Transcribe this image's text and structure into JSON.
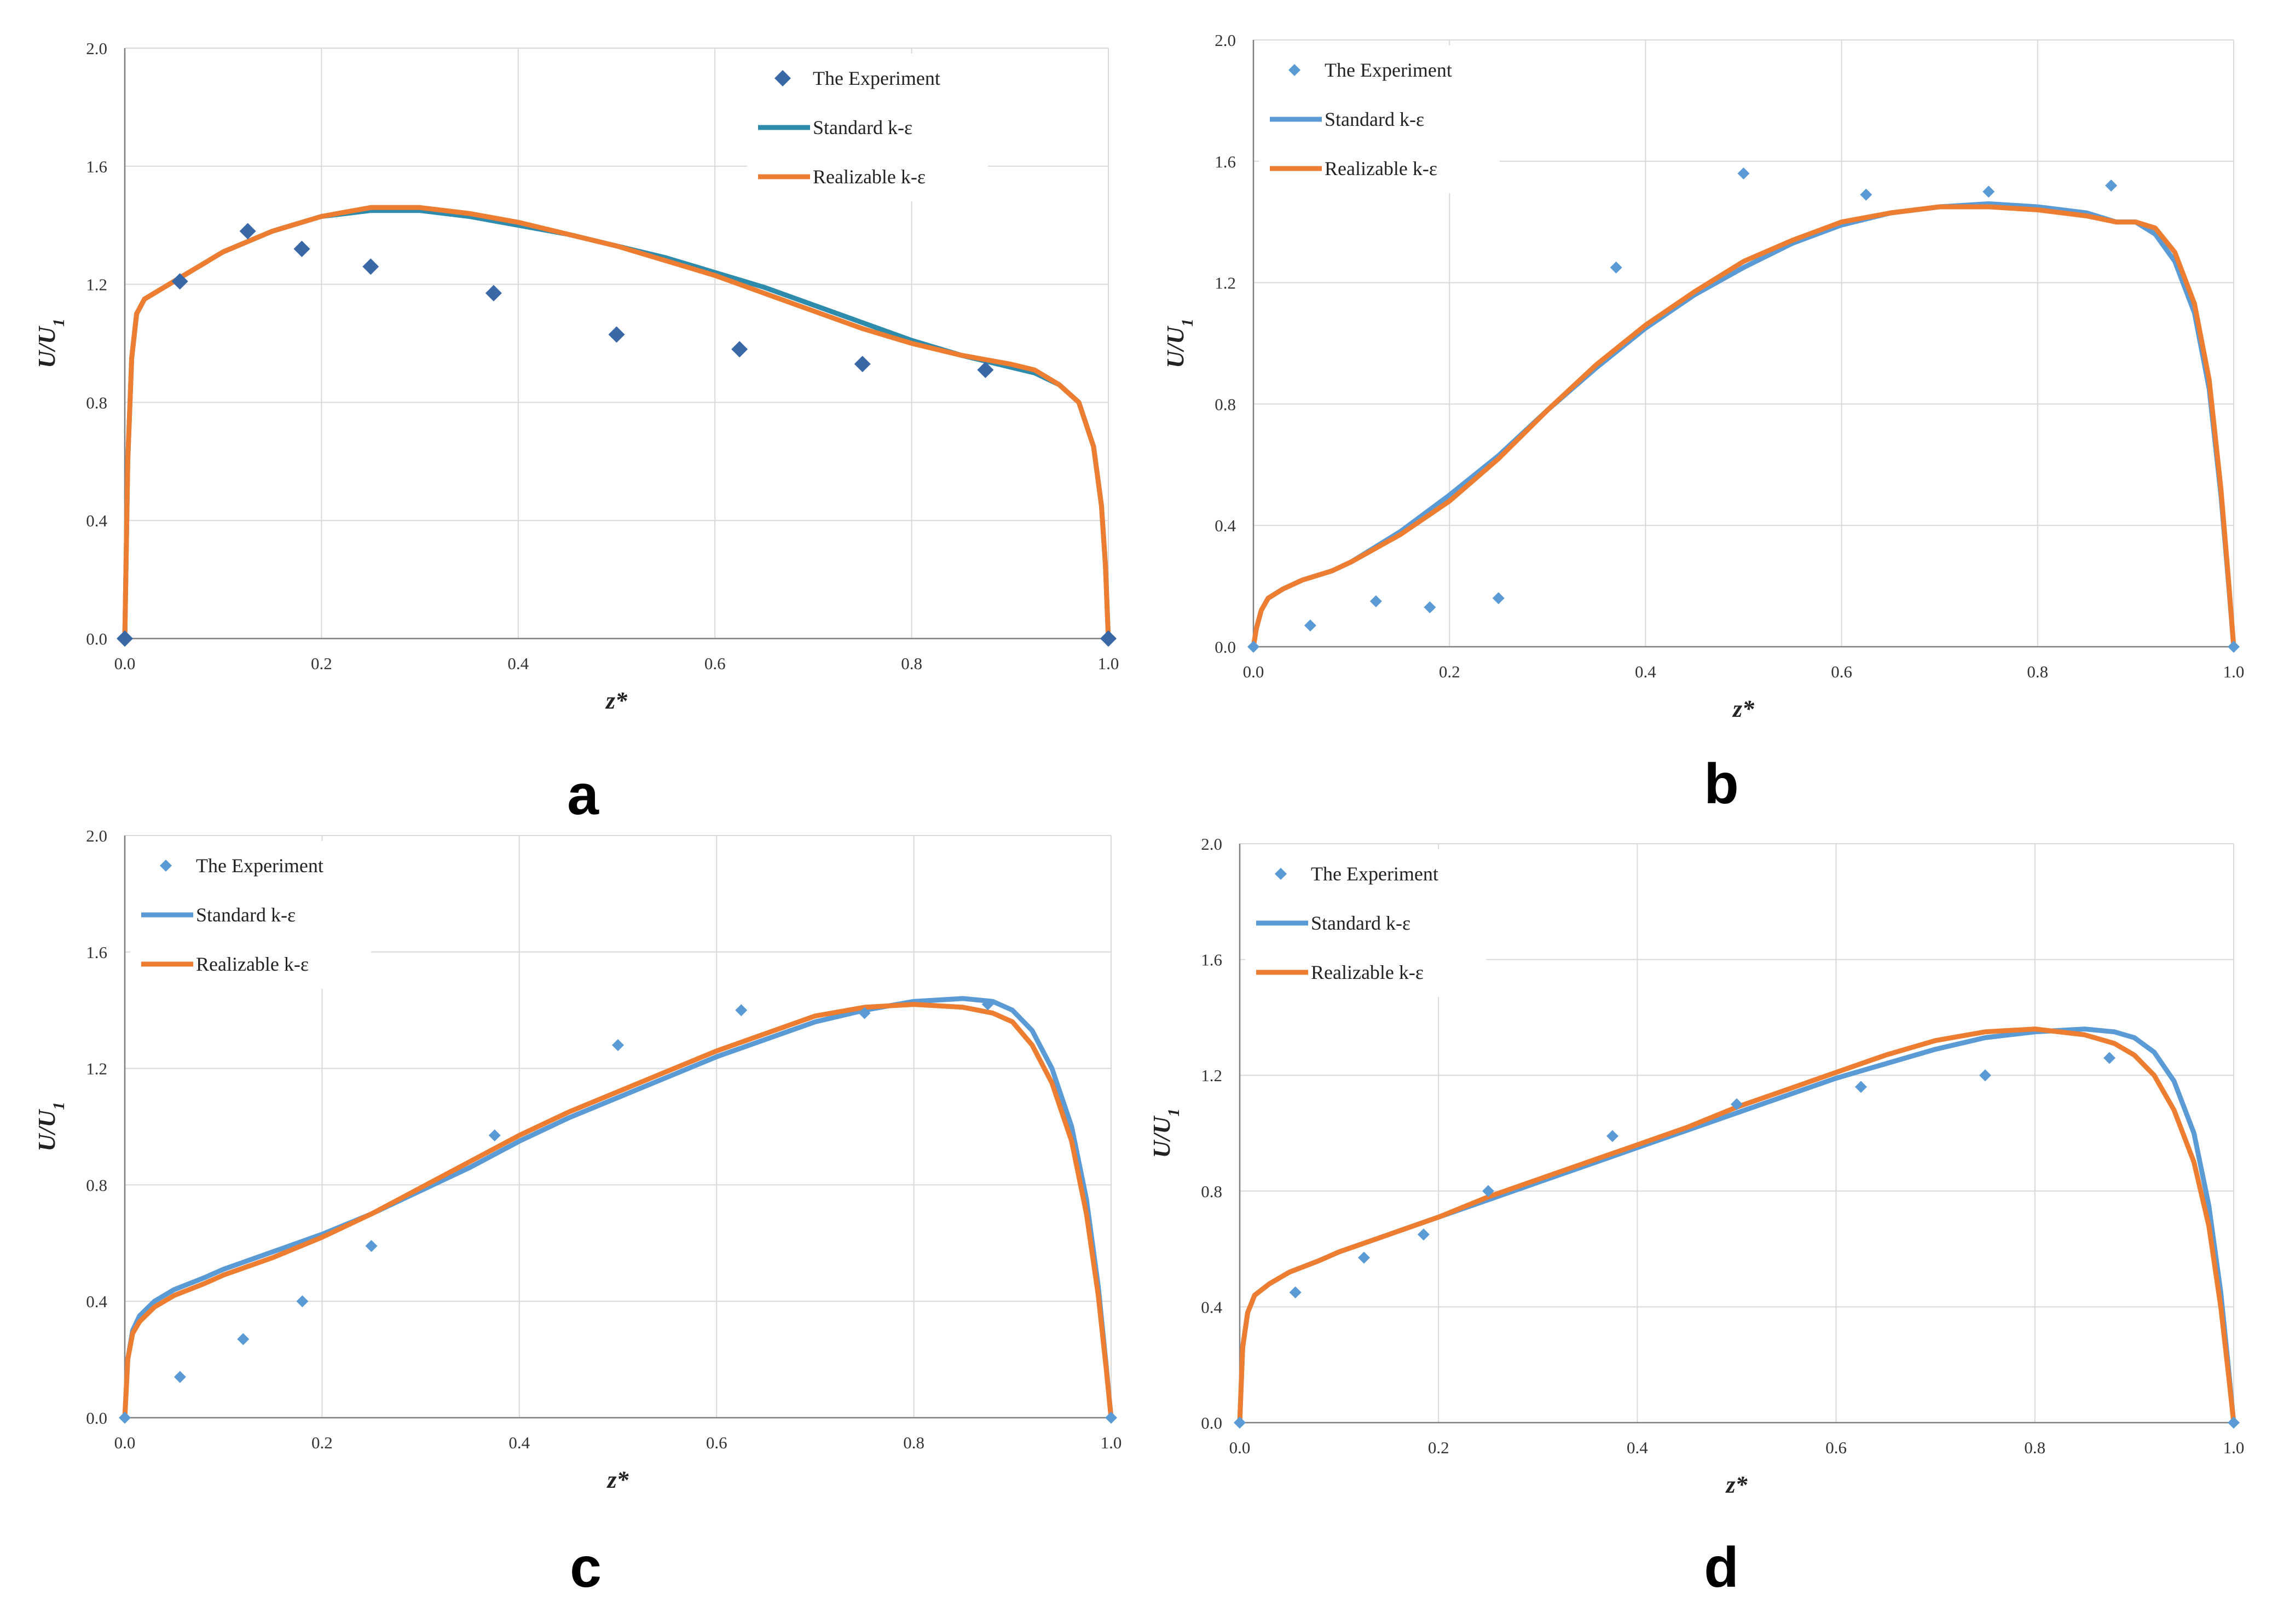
{
  "colors": {
    "grid": "#d9d9d9",
    "axis": "#7f7f7f",
    "exp_dark": "#3a67a6",
    "exp_light": "#5b9bd5",
    "std_teal": "#2e8bab",
    "std_blue": "#5b9bd5",
    "realizable": "#ed7d31"
  },
  "chart_data": [
    {
      "type": "line",
      "panel_label": "a",
      "xlabel": "z*",
      "ylabel": "U/U",
      "ylabel_sub": "1",
      "xlim": [
        0,
        1
      ],
      "ylim": [
        0,
        2
      ],
      "xticks": [
        "0.0",
        "0.2",
        "0.4",
        "0.6",
        "0.8",
        "1.0"
      ],
      "yticks": [
        "0.0",
        "0.4",
        "0.8",
        "1.2",
        "1.6",
        "2.0"
      ],
      "legend": [
        "The Experiment",
        "Standard k-ε",
        "Realizable k-ε"
      ],
      "experiment": {
        "x": [
          0,
          0.056,
          0.125,
          0.18,
          0.25,
          0.375,
          0.5,
          0.625,
          0.75,
          0.875,
          1.0
        ],
        "y": [
          0,
          1.21,
          1.38,
          1.32,
          1.26,
          1.17,
          1.03,
          0.98,
          0.93,
          0.91,
          0
        ]
      },
      "series": [
        {
          "name": "Standard k-ε",
          "x": [
            0,
            0.003,
            0.007,
            0.012,
            0.02,
            0.035,
            0.06,
            0.1,
            0.15,
            0.2,
            0.25,
            0.3,
            0.35,
            0.4,
            0.45,
            0.5,
            0.55,
            0.6,
            0.65,
            0.7,
            0.75,
            0.8,
            0.85,
            0.9,
            0.925,
            0.95,
            0.97,
            0.985,
            0.993,
            0.997,
            1.0
          ],
          "y": [
            0,
            0.6,
            0.95,
            1.1,
            1.15,
            1.18,
            1.23,
            1.31,
            1.38,
            1.43,
            1.45,
            1.45,
            1.43,
            1.4,
            1.37,
            1.33,
            1.29,
            1.24,
            1.19,
            1.13,
            1.07,
            1.01,
            0.96,
            0.92,
            0.9,
            0.86,
            0.8,
            0.65,
            0.45,
            0.25,
            0
          ]
        },
        {
          "name": "Realizable k-ε",
          "x": [
            0,
            0.003,
            0.007,
            0.012,
            0.02,
            0.035,
            0.06,
            0.1,
            0.15,
            0.2,
            0.25,
            0.3,
            0.35,
            0.4,
            0.45,
            0.5,
            0.55,
            0.6,
            0.65,
            0.7,
            0.75,
            0.8,
            0.85,
            0.9,
            0.925,
            0.95,
            0.97,
            0.985,
            0.993,
            0.997,
            1.0
          ],
          "y": [
            0,
            0.6,
            0.95,
            1.1,
            1.15,
            1.18,
            1.23,
            1.31,
            1.38,
            1.43,
            1.46,
            1.46,
            1.44,
            1.41,
            1.37,
            1.33,
            1.28,
            1.23,
            1.17,
            1.11,
            1.05,
            1.0,
            0.96,
            0.93,
            0.91,
            0.86,
            0.8,
            0.65,
            0.45,
            0.25,
            0
          ]
        }
      ]
    },
    {
      "type": "line",
      "panel_label": "b",
      "xlabel": "z*",
      "ylabel": "U/U",
      "ylabel_sub": "1",
      "xlim": [
        0,
        1
      ],
      "ylim": [
        0,
        2
      ],
      "xticks": [
        "0.0",
        "0.2",
        "0.4",
        "0.6",
        "0.8",
        "1.0"
      ],
      "yticks": [
        "0.0",
        "0.4",
        "0.8",
        "1.2",
        "1.6",
        "2.0"
      ],
      "legend": [
        "The Experiment",
        "Standard k-ε",
        "Realizable k-ε"
      ],
      "experiment": {
        "x": [
          0,
          0.058,
          0.125,
          0.18,
          0.25,
          0.37,
          0.5,
          0.625,
          0.75,
          0.875,
          1.0
        ],
        "y": [
          0,
          0.07,
          0.15,
          0.13,
          0.16,
          1.25,
          1.56,
          1.49,
          1.5,
          1.52,
          0
        ]
      },
      "series": [
        {
          "name": "Standard k-ε",
          "x": [
            0,
            0.003,
            0.008,
            0.015,
            0.03,
            0.05,
            0.08,
            0.1,
            0.15,
            0.2,
            0.25,
            0.3,
            0.35,
            0.4,
            0.45,
            0.5,
            0.55,
            0.6,
            0.65,
            0.7,
            0.75,
            0.8,
            0.85,
            0.88,
            0.9,
            0.92,
            0.94,
            0.96,
            0.975,
            0.987,
            0.995,
            1.0
          ],
          "y": [
            0,
            0.06,
            0.12,
            0.16,
            0.19,
            0.22,
            0.25,
            0.28,
            0.38,
            0.5,
            0.63,
            0.78,
            0.92,
            1.05,
            1.16,
            1.25,
            1.33,
            1.39,
            1.43,
            1.45,
            1.46,
            1.45,
            1.43,
            1.4,
            1.4,
            1.36,
            1.27,
            1.1,
            0.85,
            0.5,
            0.2,
            0
          ]
        },
        {
          "name": "Realizable k-ε",
          "x": [
            0,
            0.003,
            0.008,
            0.015,
            0.03,
            0.05,
            0.08,
            0.1,
            0.15,
            0.2,
            0.25,
            0.3,
            0.35,
            0.4,
            0.45,
            0.5,
            0.55,
            0.6,
            0.65,
            0.7,
            0.75,
            0.8,
            0.85,
            0.88,
            0.9,
            0.92,
            0.94,
            0.96,
            0.975,
            0.987,
            0.995,
            1.0
          ],
          "y": [
            0,
            0.06,
            0.12,
            0.16,
            0.19,
            0.22,
            0.25,
            0.28,
            0.37,
            0.48,
            0.62,
            0.78,
            0.93,
            1.06,
            1.17,
            1.27,
            1.34,
            1.4,
            1.43,
            1.45,
            1.45,
            1.44,
            1.42,
            1.4,
            1.4,
            1.38,
            1.3,
            1.13,
            0.88,
            0.52,
            0.21,
            0
          ]
        }
      ]
    },
    {
      "type": "line",
      "panel_label": "c",
      "xlabel": "z*",
      "ylabel": "U/U",
      "ylabel_sub": "1",
      "xlim": [
        0,
        1
      ],
      "ylim": [
        0,
        2
      ],
      "xticks": [
        "0.0",
        "0.2",
        "0.4",
        "0.6",
        "0.8",
        "1.0"
      ],
      "yticks": [
        "0.0",
        "0.4",
        "0.8",
        "1.2",
        "1.6",
        "2.0"
      ],
      "legend": [
        "The Experiment",
        "Standard k-ε",
        "Realizable k-ε"
      ],
      "experiment": {
        "x": [
          0,
          0.056,
          0.12,
          0.18,
          0.25,
          0.375,
          0.5,
          0.625,
          0.75,
          0.875,
          1.0
        ],
        "y": [
          0,
          0.14,
          0.27,
          0.4,
          0.59,
          0.97,
          1.28,
          1.4,
          1.39,
          1.42,
          0
        ]
      },
      "series": [
        {
          "name": "Standard k-ε",
          "x": [
            0,
            0.003,
            0.008,
            0.015,
            0.03,
            0.05,
            0.08,
            0.1,
            0.15,
            0.2,
            0.25,
            0.3,
            0.35,
            0.4,
            0.45,
            0.5,
            0.55,
            0.6,
            0.65,
            0.7,
            0.75,
            0.8,
            0.85,
            0.88,
            0.9,
            0.92,
            0.94,
            0.96,
            0.975,
            0.987,
            0.995,
            1.0
          ],
          "y": [
            0,
            0.2,
            0.3,
            0.35,
            0.4,
            0.44,
            0.48,
            0.51,
            0.57,
            0.63,
            0.7,
            0.78,
            0.86,
            0.95,
            1.03,
            1.1,
            1.17,
            1.24,
            1.3,
            1.36,
            1.4,
            1.43,
            1.44,
            1.43,
            1.4,
            1.33,
            1.2,
            1.0,
            0.75,
            0.45,
            0.18,
            0
          ]
        },
        {
          "name": "Realizable k-ε",
          "x": [
            0,
            0.003,
            0.008,
            0.015,
            0.03,
            0.05,
            0.08,
            0.1,
            0.15,
            0.2,
            0.25,
            0.3,
            0.35,
            0.4,
            0.45,
            0.5,
            0.55,
            0.6,
            0.65,
            0.7,
            0.75,
            0.8,
            0.85,
            0.88,
            0.9,
            0.92,
            0.94,
            0.96,
            0.975,
            0.987,
            0.995,
            1.0
          ],
          "y": [
            0,
            0.2,
            0.29,
            0.33,
            0.38,
            0.42,
            0.46,
            0.49,
            0.55,
            0.62,
            0.7,
            0.79,
            0.88,
            0.97,
            1.05,
            1.12,
            1.19,
            1.26,
            1.32,
            1.38,
            1.41,
            1.42,
            1.41,
            1.39,
            1.36,
            1.28,
            1.15,
            0.95,
            0.7,
            0.42,
            0.17,
            0
          ]
        }
      ]
    },
    {
      "type": "line",
      "panel_label": "d",
      "xlabel": "z*",
      "ylabel": "U/U",
      "ylabel_sub": "1",
      "xlim": [
        0,
        1
      ],
      "ylim": [
        0,
        2
      ],
      "xticks": [
        "0.0",
        "0.2",
        "0.4",
        "0.6",
        "0.8",
        "1.0"
      ],
      "yticks": [
        "0.0",
        "0.4",
        "0.8",
        "1.2",
        "1.6",
        "2.0"
      ],
      "legend": [
        "The Experiment",
        "Standard k-ε",
        "Realizable k-ε"
      ],
      "experiment": {
        "x": [
          0,
          0.056,
          0.125,
          0.185,
          0.25,
          0.375,
          0.5,
          0.625,
          0.75,
          0.875,
          1.0
        ],
        "y": [
          0,
          0.45,
          0.57,
          0.65,
          0.8,
          0.99,
          1.1,
          1.16,
          1.2,
          1.26,
          0
        ]
      },
      "series": [
        {
          "name": "Standard k-ε",
          "x": [
            0,
            0.003,
            0.008,
            0.015,
            0.03,
            0.05,
            0.08,
            0.1,
            0.15,
            0.2,
            0.25,
            0.3,
            0.35,
            0.4,
            0.45,
            0.5,
            0.55,
            0.6,
            0.65,
            0.7,
            0.75,
            0.8,
            0.85,
            0.88,
            0.9,
            0.92,
            0.94,
            0.96,
            0.975,
            0.987,
            0.995,
            1.0
          ],
          "y": [
            0,
            0.26,
            0.38,
            0.44,
            0.48,
            0.52,
            0.56,
            0.59,
            0.65,
            0.71,
            0.77,
            0.83,
            0.89,
            0.95,
            1.01,
            1.07,
            1.13,
            1.19,
            1.24,
            1.29,
            1.33,
            1.35,
            1.36,
            1.35,
            1.33,
            1.28,
            1.18,
            1.0,
            0.75,
            0.45,
            0.18,
            0
          ]
        },
        {
          "name": "Realizable k-ε",
          "x": [
            0,
            0.003,
            0.008,
            0.015,
            0.03,
            0.05,
            0.08,
            0.1,
            0.15,
            0.2,
            0.25,
            0.3,
            0.35,
            0.4,
            0.45,
            0.5,
            0.55,
            0.6,
            0.65,
            0.7,
            0.75,
            0.8,
            0.85,
            0.88,
            0.9,
            0.92,
            0.94,
            0.96,
            0.975,
            0.987,
            0.995,
            1.0
          ],
          "y": [
            0,
            0.26,
            0.38,
            0.44,
            0.48,
            0.52,
            0.56,
            0.59,
            0.65,
            0.71,
            0.78,
            0.84,
            0.9,
            0.96,
            1.02,
            1.09,
            1.15,
            1.21,
            1.27,
            1.32,
            1.35,
            1.36,
            1.34,
            1.31,
            1.27,
            1.2,
            1.08,
            0.9,
            0.68,
            0.4,
            0.16,
            0
          ]
        }
      ]
    }
  ]
}
